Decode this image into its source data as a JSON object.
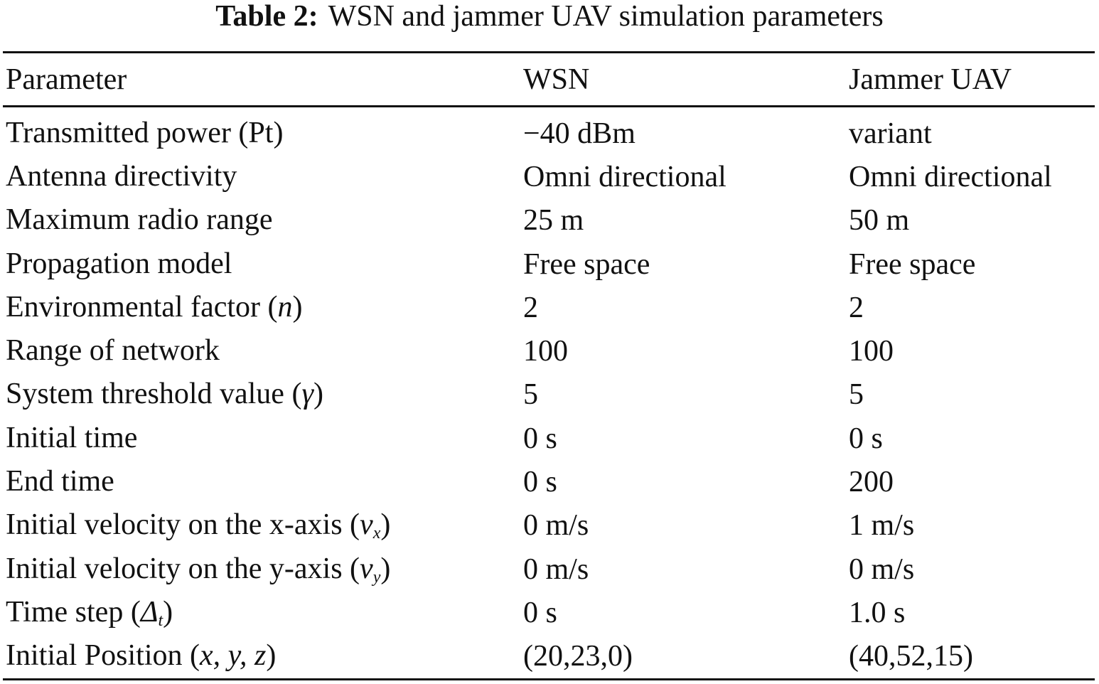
{
  "caption": {
    "label": "Table 2:",
    "text": "WSN and jammer UAV simulation parameters"
  },
  "table": {
    "headers": [
      "Parameter",
      "WSN",
      "Jammer UAV"
    ],
    "rows": [
      {
        "param": "Transmitted power (Pt)",
        "symbol": "",
        "sub": "",
        "close": "",
        "wsn": "−40 dBm",
        "jammer": "variant"
      },
      {
        "param": "Antenna directivity",
        "symbol": "",
        "sub": "",
        "close": "",
        "wsn": "Omni directional",
        "jammer": "Omni directional"
      },
      {
        "param": "Maximum radio range",
        "symbol": "",
        "sub": "",
        "close": "",
        "wsn": "25 m",
        "jammer": "50 m"
      },
      {
        "param": "Propagation model",
        "symbol": "",
        "sub": "",
        "close": "",
        "wsn": "Free space",
        "jammer": "Free space"
      },
      {
        "param": "Environmental factor (",
        "symbol": "n",
        "sub": "",
        "close": ")",
        "wsn": "2",
        "jammer": "2"
      },
      {
        "param": "Range of network",
        "symbol": "",
        "sub": "",
        "close": "",
        "wsn": "100",
        "jammer": "100"
      },
      {
        "param": "System threshold value (",
        "symbol": "γ",
        "sub": "",
        "close": ")",
        "wsn": "5",
        "jammer": "5"
      },
      {
        "param": "Initial time",
        "symbol": "",
        "sub": "",
        "close": "",
        "wsn": "0 s",
        "jammer": "0 s"
      },
      {
        "param": "End time",
        "symbol": "",
        "sub": "",
        "close": "",
        "wsn": "0 s",
        "jammer": "200"
      },
      {
        "param": "Initial velocity on the x-axis (",
        "symbol": "v",
        "sub": "x",
        "close": ")",
        "wsn": "0 m/s",
        "jammer": "1 m/s"
      },
      {
        "param": "Initial velocity on the y-axis (",
        "symbol": "v",
        "sub": "y",
        "close": ")",
        "wsn": "0 m/s",
        "jammer": "0 m/s"
      },
      {
        "param": "Time step (",
        "symbol": "Δ",
        "sub": "t",
        "close": ")",
        "wsn": "0 s",
        "jammer": "1.0 s"
      },
      {
        "param": "Initial Position (",
        "symbol": "x, y, z",
        "sub": "",
        "close": ")",
        "wsn": "(20,23,0)",
        "jammer": "(40,52,15)"
      }
    ]
  }
}
